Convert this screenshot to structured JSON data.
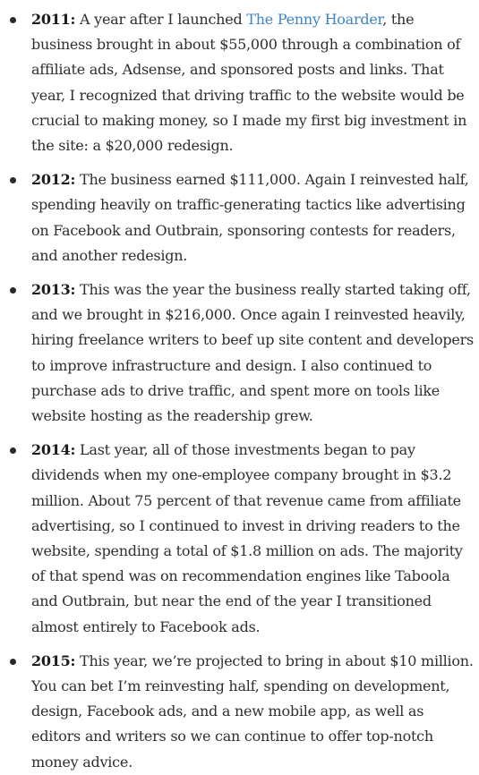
{
  "items": [
    {
      "year": "2011:",
      "segments": [
        " A year after I launched ",
        {
          "link": "The Penny Hoarder"
        },
        ", the business brought in about $55,000 through a combination of affiliate ads, Adsense, and sponsored posts and links. That year, I recognized that driving traffic to the website would be crucial to making money, so I made my first big investment in the site: a $20,000 redesign."
      ]
    },
    {
      "year": "2012:",
      "segments": [
        " The business earned $111,000. Again I reinvested half, spending heavily on traffic-generating tactics like advertising on Facebook and Outbrain, sponsoring contests for readers, and another redesign."
      ]
    },
    {
      "year": "2013:",
      "segments": [
        " This was the year the business really started taking off, and we brought in $216,000. Once again I reinvested heavily, hiring freelance writers to beef up site content and developers to improve infrastructure and design. I also continued to purchase ads to drive traffic, and spent more on tools like website hosting as the readership grew."
      ]
    },
    {
      "year": "2014:",
      "segments": [
        " Last year, all of those investments began to pay dividends when my one-employee company brought in $3.2 million. About 75 percent of that revenue came from affiliate advertising, so I continued to invest in driving readers to the website, spending a total of $1.8 million on ads. The majority of that spend was on recommendation engines like Taboola and Outbrain, but near the end of the year I transitioned almost entirely to Facebook ads."
      ]
    },
    {
      "year": "2015:",
      "segments": [
        " This year, we’re projected to bring in about $10 million. You can bet I’m reinvesting half, spending on development, design, Facebook ads, and a new mobile app, as well as editors and writers so we can continue to offer top-notch money advice."
      ]
    }
  ]
}
